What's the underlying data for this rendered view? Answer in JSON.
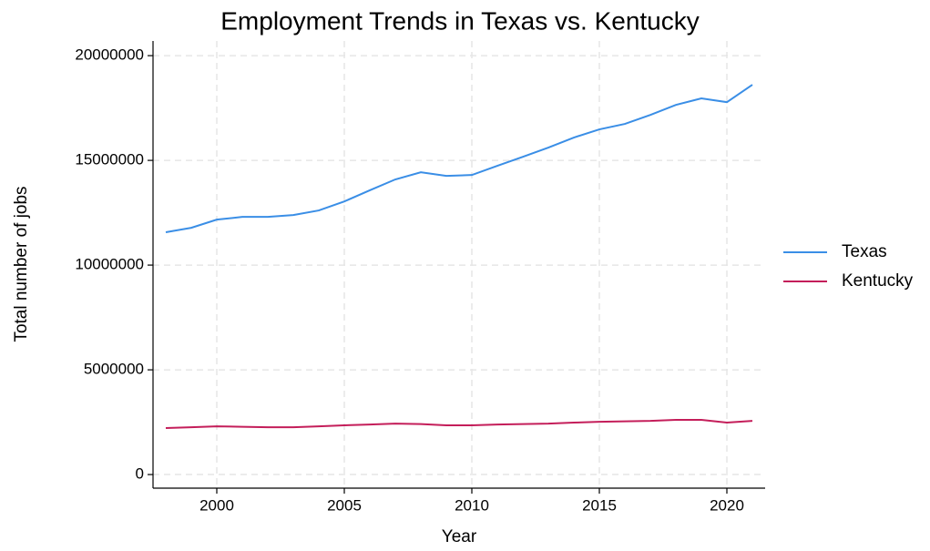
{
  "chart_data": {
    "type": "line",
    "title": "Employment Trends in Texas vs. Kentucky",
    "x_label": "Year",
    "y_label": "Total number of jobs",
    "x": [
      1998,
      1999,
      2000,
      2001,
      2002,
      2003,
      2004,
      2005,
      2006,
      2007,
      2008,
      2009,
      2010,
      2011,
      2012,
      2013,
      2014,
      2015,
      2016,
      2017,
      2018,
      2019,
      2020,
      2021
    ],
    "series": [
      {
        "name": "Texas",
        "color": "#3a8ee6",
        "values": [
          11570000,
          11780000,
          12170000,
          12300000,
          12300000,
          12390000,
          12610000,
          13040000,
          13570000,
          14090000,
          14430000,
          14260000,
          14300000,
          14740000,
          15170000,
          15610000,
          16090000,
          16480000,
          16740000,
          17170000,
          17650000,
          17960000,
          17780000,
          18610000
        ]
      },
      {
        "name": "Kentucky",
        "color": "#c41e5a",
        "values": [
          2220000,
          2260000,
          2300000,
          2280000,
          2260000,
          2260000,
          2300000,
          2350000,
          2390000,
          2430000,
          2410000,
          2350000,
          2350000,
          2390000,
          2410000,
          2430000,
          2480000,
          2520000,
          2540000,
          2560000,
          2610000,
          2610000,
          2480000,
          2560000
        ]
      }
    ],
    "xlim": [
      1997.5,
      2021.5
    ],
    "xticks": [
      2000,
      2005,
      2010,
      2015,
      2020
    ],
    "ylim": [
      -650000,
      20700000
    ],
    "yticks": [
      0,
      5000000,
      10000000,
      15000000,
      20000000
    ],
    "grid": true,
    "legend": "right"
  }
}
